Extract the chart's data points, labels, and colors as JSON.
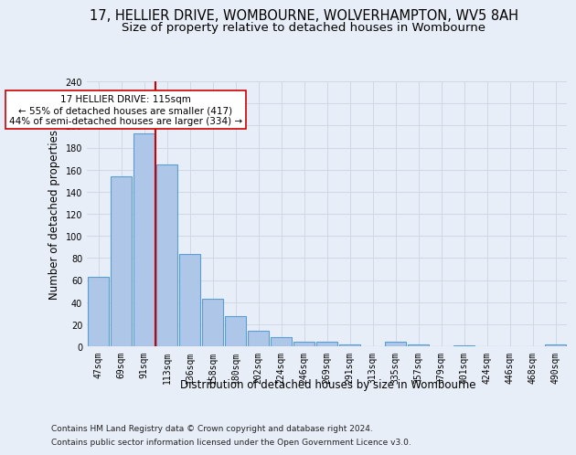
{
  "title_line1": "17, HELLIER DRIVE, WOMBOURNE, WOLVERHAMPTON, WV5 8AH",
  "title_line2": "Size of property relative to detached houses in Wombourne",
  "xlabel": "Distribution of detached houses by size in Wombourne",
  "ylabel": "Number of detached properties",
  "footer_line1": "Contains HM Land Registry data © Crown copyright and database right 2024.",
  "footer_line2": "Contains public sector information licensed under the Open Government Licence v3.0.",
  "bar_labels": [
    "47sqm",
    "69sqm",
    "91sqm",
    "113sqm",
    "136sqm",
    "158sqm",
    "180sqm",
    "202sqm",
    "224sqm",
    "246sqm",
    "269sqm",
    "291sqm",
    "313sqm",
    "335sqm",
    "357sqm",
    "379sqm",
    "401sqm",
    "424sqm",
    "446sqm",
    "468sqm",
    "490sqm"
  ],
  "bar_values": [
    63,
    154,
    193,
    165,
    84,
    43,
    27,
    14,
    8,
    4,
    4,
    2,
    0,
    4,
    2,
    0,
    1,
    0,
    0,
    0,
    2
  ],
  "bar_color": "#aec6e8",
  "bar_edge_color": "#5a9fd4",
  "bar_edge_width": 0.8,
  "vline_color": "#cc0000",
  "vline_label": "17 HELLIER DRIVE: 115sqm",
  "annotation_line2": "← 55% of detached houses are smaller (417)",
  "annotation_line3": "44% of semi-detached houses are larger (334) →",
  "annotation_box_edgecolor": "#cc0000",
  "annotation_box_facecolor": "#ffffff",
  "ylim": [
    0,
    240
  ],
  "yticks": [
    0,
    20,
    40,
    60,
    80,
    100,
    120,
    140,
    160,
    180,
    200,
    220,
    240
  ],
  "grid_color": "#d0d8e8",
  "bg_color": "#e8eef8",
  "plot_bg_color": "#e8eef8",
  "title_fontsize": 10.5,
  "subtitle_fontsize": 9.5,
  "axis_label_fontsize": 8.5,
  "tick_fontsize": 7,
  "footer_fontsize": 6.5,
  "annot_fontsize": 7.5
}
